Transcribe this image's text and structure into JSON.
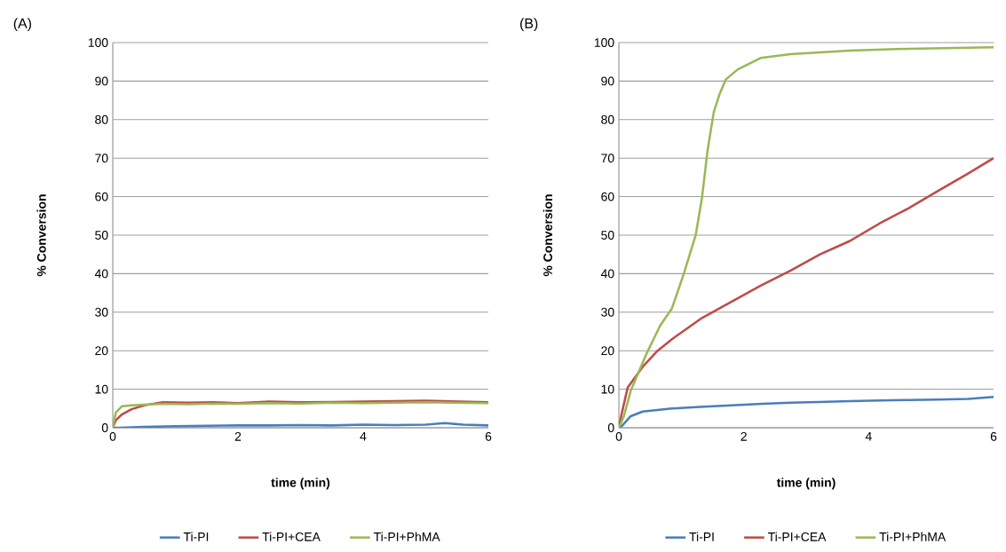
{
  "chart_data": [
    {
      "type": "line",
      "title": "(A)",
      "xlabel": "time (min)",
      "ylabel": "% Conversion",
      "xlim": [
        0,
        6
      ],
      "ylim": [
        0,
        100
      ],
      "xticks": [
        0,
        2,
        4,
        6
      ],
      "yticks": [
        0,
        10,
        20,
        30,
        40,
        50,
        60,
        70,
        80,
        90,
        100
      ],
      "grid": "y",
      "legend": "bottom",
      "line_style": "solid",
      "series": [
        {
          "name": "Ti-PI",
          "color": "#4a7ebb",
          "x": [
            0,
            0.1,
            0.5,
            1,
            1.5,
            2,
            2.5,
            3,
            3.5,
            4,
            4.5,
            5,
            5.3,
            5.6,
            6
          ],
          "values": [
            0,
            0,
            0.2,
            0.4,
            0.5,
            0.6,
            0.6,
            0.7,
            0.6,
            0.8,
            0.7,
            0.8,
            1.2,
            0.8,
            0.6
          ]
        },
        {
          "name": "Ti-PI+CEA",
          "color": "#be4b48",
          "x": [
            0,
            0.05,
            0.15,
            0.3,
            0.5,
            0.8,
            1.2,
            1.6,
            2,
            2.5,
            3,
            3.5,
            4,
            4.5,
            5,
            5.5,
            6
          ],
          "values": [
            0,
            2,
            3.5,
            4.8,
            5.8,
            6.6,
            6.5,
            6.6,
            6.4,
            6.8,
            6.6,
            6.7,
            6.8,
            6.9,
            7.0,
            6.8,
            6.6
          ]
        },
        {
          "name": "Ti-PI+PhMA",
          "color": "#98b954",
          "x": [
            0,
            0.05,
            0.15,
            0.3,
            0.5,
            0.8,
            1.2,
            1.6,
            2,
            2.5,
            3,
            3.5,
            4,
            4.5,
            5,
            5.5,
            6
          ],
          "values": [
            0,
            4,
            5.6,
            5.8,
            6,
            6.2,
            6.1,
            6.3,
            6.2,
            6.4,
            6.3,
            6.5,
            6.4,
            6.5,
            6.6,
            6.5,
            6.4
          ]
        }
      ]
    },
    {
      "type": "line",
      "title": "(B)",
      "xlabel": "time (min)",
      "ylabel": "% Conversion",
      "xlim": [
        0,
        6
      ],
      "ylim": [
        0,
        100
      ],
      "xticks": [
        0,
        2,
        4,
        6
      ],
      "yticks": [
        0,
        10,
        20,
        30,
        40,
        50,
        60,
        70,
        80,
        90,
        100
      ],
      "grid": "y",
      "legend": "bottom",
      "line_style": "solid",
      "series": [
        {
          "name": "Ti-PI",
          "color": "#4a7ebb",
          "x": [
            0,
            0.05,
            0.19,
            0.38,
            0.85,
            1.3,
            1.8,
            2.3,
            2.75,
            3.2,
            3.7,
            4.2,
            4.64,
            5.1,
            5.59,
            6
          ],
          "values": [
            0,
            0.5,
            3,
            4.2,
            5,
            5.4,
            5.8,
            6.2,
            6.5,
            6.7,
            6.9,
            7.1,
            7.2,
            7.3,
            7.5,
            8
          ]
        },
        {
          "name": "Ti-PI+CEA",
          "color": "#be4b48",
          "x": [
            0,
            0.05,
            0.14,
            0.38,
            0.62,
            0.85,
            1.33,
            1.8,
            2.27,
            2.75,
            3.22,
            3.7,
            4.17,
            4.64,
            5.11,
            5.59,
            6
          ],
          "values": [
            0,
            4,
            10.4,
            15.8,
            20,
            23,
            28.5,
            32.7,
            36.9,
            40.8,
            45,
            48.5,
            53,
            57,
            61.5,
            66,
            70
          ]
        },
        {
          "name": "Ti-PI+PhMA",
          "color": "#98b954",
          "x": [
            0,
            0.08,
            0.19,
            0.43,
            0.66,
            0.85,
            1.04,
            1.23,
            1.33,
            1.42,
            1.52,
            1.61,
            1.71,
            1.9,
            2.27,
            2.75,
            3.7,
            4.64,
            6
          ],
          "values": [
            0,
            3,
            9.6,
            18.8,
            26.5,
            31,
            40,
            50,
            59.6,
            72,
            82,
            86.5,
            90.4,
            93,
            96,
            97,
            97.9,
            98.4,
            98.8
          ]
        }
      ]
    }
  ]
}
